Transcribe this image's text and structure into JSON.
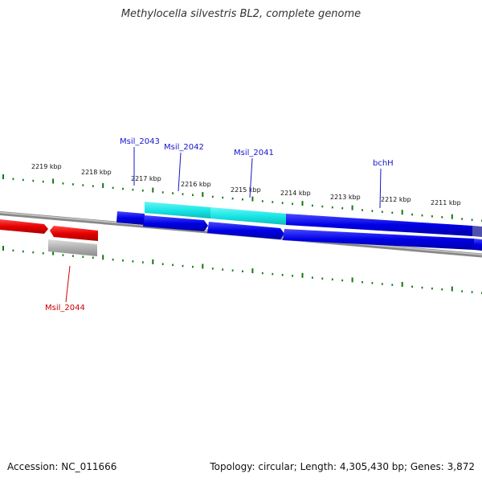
{
  "title": "Methylocella silvestris BL2, complete genome",
  "ticks": [
    "2219 kbp",
    "2218 kbp",
    "2217 kbp",
    "2216 kbp",
    "2215 kbp",
    "2214 kbp",
    "2213 kbp",
    "2212 kbp",
    "2211 kbp"
  ],
  "genes": [
    {
      "label": "Msil_2043",
      "color": "#1515cc"
    },
    {
      "label": "Msil_2042",
      "color": "#1515cc"
    },
    {
      "label": "Msil_2041",
      "color": "#1515cc"
    },
    {
      "label": "bchH",
      "color": "#1515cc"
    },
    {
      "label": "Msil_2044",
      "color": "#cc0000"
    }
  ],
  "colors": {
    "forward_cds": "#0000e6",
    "forward_highlight": "#19e6e6",
    "reverse_cds": "#e60000",
    "reverse_other": "#b0b0b0",
    "backbone": "#888888",
    "tick": "#117711"
  },
  "footer": {
    "accession": "Accession: NC_011666",
    "stats": "Topology: circular; Length: 4,305,430 bp; Genes: 3,872"
  }
}
